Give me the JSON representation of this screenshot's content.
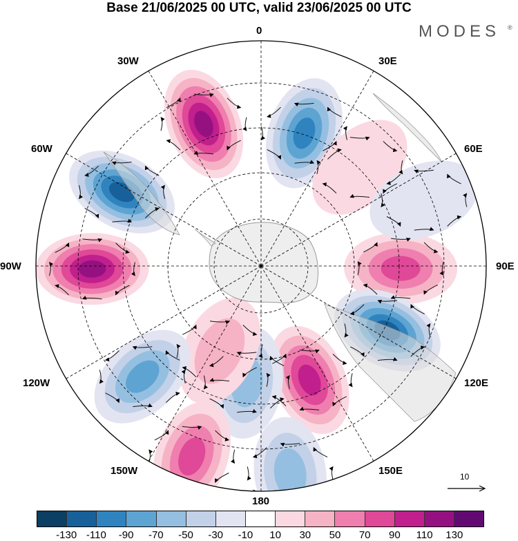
{
  "title": "Base 21/06/2025 00 UTC, valid 23/06/2025 00 UTC",
  "brand": "MODES",
  "brand_mark": "®",
  "longitude_labels": {
    "top": "0",
    "top_right": "30E",
    "right_upper": "60E",
    "right": "90E",
    "right_lower": "120E",
    "bottom_right": "150E",
    "bottom": "180",
    "bottom_left": "150W",
    "left_lower": "120W",
    "left": "90W",
    "left_upper": "60W",
    "top_left": "30W"
  },
  "reference_vector": {
    "label": "10"
  },
  "colorbar": {
    "colors": [
      "#0b3f63",
      "#17609a",
      "#2f84bf",
      "#5da4d3",
      "#95bfe0",
      "#c2d1e8",
      "#e2e4f1",
      "#ffffff",
      "#fbd9e2",
      "#f6b3c6",
      "#ef7fae",
      "#e04898",
      "#c11f8d",
      "#951181",
      "#620a72"
    ],
    "tick_labels": [
      "-130",
      "-110",
      "-90",
      "-70",
      "-50",
      "-30",
      "-10",
      "10",
      "30",
      "50",
      "70",
      "90",
      "110",
      "130"
    ]
  },
  "colors": {
    "antarctica": "#eeeeee",
    "coastline": "#9a9a9a",
    "graticule": "#000000"
  },
  "anomaly_cells": [
    {
      "name": "anomaly-positive-30w",
      "lon": -22,
      "dist": 0.68,
      "value": 120
    },
    {
      "name": "anomaly-negative-20e",
      "lon": 18,
      "dist": 0.62,
      "value": -110
    },
    {
      "name": "anomaly-negative-60w",
      "lon": -62,
      "dist": 0.7,
      "value": -125
    },
    {
      "name": "anomaly-positive-90w",
      "lon": -91,
      "dist": 0.75,
      "value": 125
    },
    {
      "name": "anomaly-positive-90e",
      "lon": 91,
      "dist": 0.62,
      "value": 80
    },
    {
      "name": "anomaly-negative-115e",
      "lon": 117,
      "dist": 0.63,
      "value": -120
    },
    {
      "name": "anomaly-positive-160e",
      "lon": 157,
      "dist": 0.55,
      "value": 115
    },
    {
      "name": "anomaly-negative-170w",
      "lon": -173,
      "dist": 0.52,
      "value": -75
    },
    {
      "name": "anomaly-positive-150w",
      "lon": -154,
      "dist": 0.42,
      "value": 40
    },
    {
      "name": "anomaly-negative-130w",
      "lon": -133,
      "dist": 0.72,
      "value": -85
    },
    {
      "name": "anomaly-positive-160w",
      "lon": -160,
      "dist": 0.9,
      "value": 85
    },
    {
      "name": "anomaly-negative-175e",
      "lon": 172,
      "dist": 0.93,
      "value": -75
    },
    {
      "name": "anomaly-positive-45e",
      "lon": 45,
      "dist": 0.62,
      "value": 30
    },
    {
      "name": "anomaly-negative-65e",
      "lon": 68,
      "dist": 0.78,
      "value": -25
    }
  ]
}
